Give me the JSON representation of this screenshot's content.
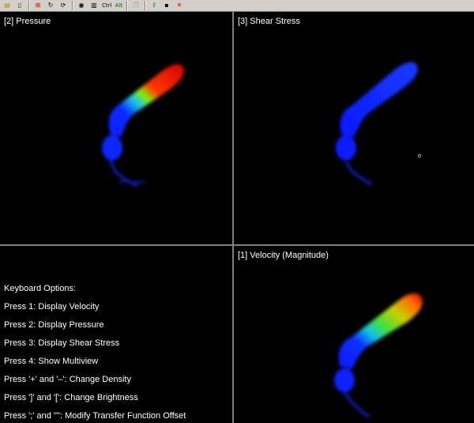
{
  "toolbar": {
    "items": [
      {
        "icon": "open-folder-icon"
      },
      {
        "icon": "document-icon"
      },
      {
        "icon": "grid-icon"
      },
      {
        "icon": "rotate-icon"
      },
      {
        "icon": "refresh-icon"
      },
      {
        "icon": "eye-icon"
      },
      {
        "icon": "book-icon"
      },
      {
        "label": "Ctrl"
      },
      {
        "label": "Alt"
      },
      {
        "icon": "copy-icon"
      },
      {
        "icon": "export-icon"
      },
      {
        "icon": "save-icon"
      },
      {
        "icon": "close-icon"
      }
    ]
  },
  "views": {
    "pressure": {
      "title": "[2] Pressure"
    },
    "shear": {
      "title": "[3] Shear Stress"
    },
    "velocity": {
      "title": "[1] Velocity (Magnitude)"
    }
  },
  "keyboard": {
    "heading": "Keyboard Options:",
    "options": [
      "Press 1: Display Velocity",
      "Press 2: Display Pressure",
      "Press 3: Display Shear Stress",
      "Press 4: Show Multiview",
      "Press '+' and '–': Change Density",
      "Press ']' and '[': Change Brightness",
      "Press ';' and '\"': Modify Transfer Function Offset"
    ]
  },
  "colors": {
    "background": "#000000",
    "toolbar": "#d4d0c8",
    "divider": "#808080",
    "text": "#ffffff"
  }
}
